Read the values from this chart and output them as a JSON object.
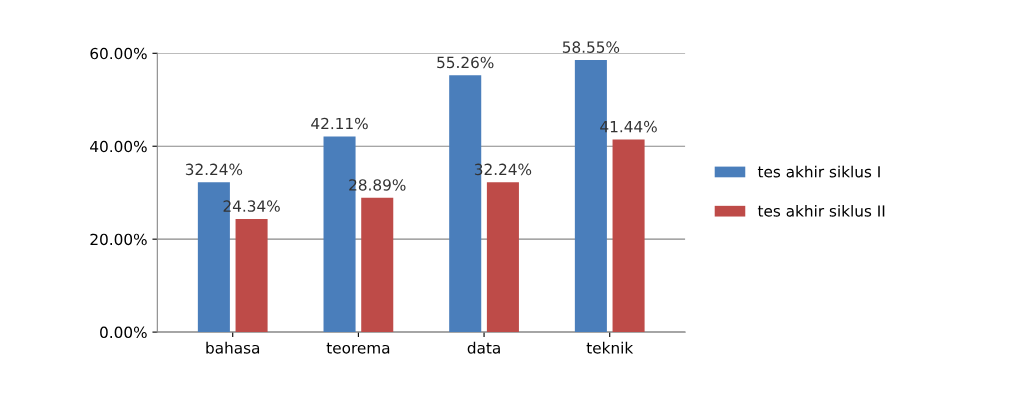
{
  "chart_data": {
    "type": "bar",
    "categories": [
      "bahasa",
      "teorema",
      "data",
      "teknik"
    ],
    "series": [
      {
        "name": "tes akhir siklus I",
        "color": "#4a7ebb",
        "values": [
          32.24,
          42.11,
          55.26,
          58.55
        ],
        "value_labels": [
          "32.24%",
          "42.11%",
          "55.26%",
          "58.55%"
        ]
      },
      {
        "name": "tes akhir siklus II",
        "color": "#be4b48",
        "values": [
          24.34,
          28.89,
          32.24,
          41.44
        ],
        "value_labels": [
          "24.34%",
          "28.89%",
          "32.24%",
          "41.44%"
        ]
      }
    ],
    "ylim": [
      0,
      60
    ],
    "yticks": [
      {
        "value": 0,
        "label": "0.00%"
      },
      {
        "value": 20,
        "label": "20.00%"
      },
      {
        "value": 40,
        "label": "40.00%"
      },
      {
        "value": 60,
        "label": "60.00%"
      }
    ],
    "grid": "y",
    "legend": "right"
  }
}
